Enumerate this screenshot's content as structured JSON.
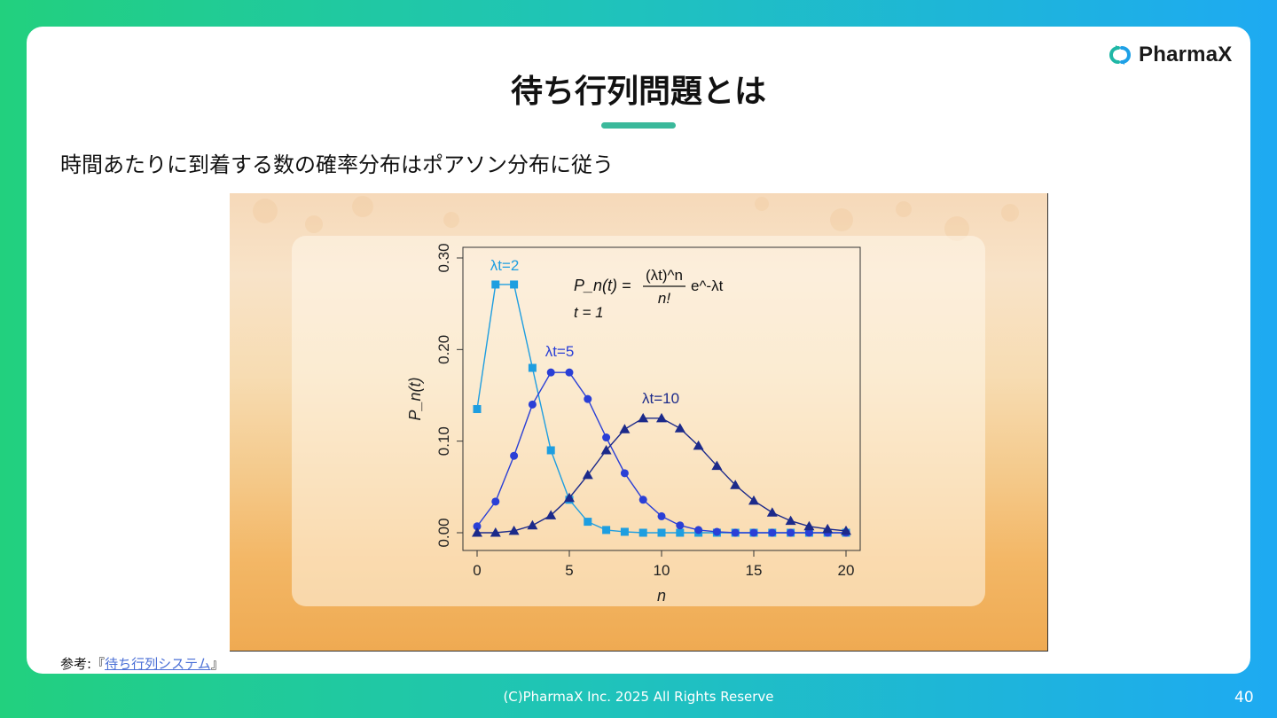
{
  "brand": {
    "name": "PharmaX"
  },
  "slide": {
    "title": "待ち行列問題とは",
    "subtitle": "時間あたりに到着する数の確率分布はポアソン分布に従う",
    "source_prefix": "参考:『",
    "source_link": "待ち行列システム",
    "source_suffix": "』",
    "footer": "(C)PharmaX Inc. 2025  All Rights Reserve",
    "page_number": "40"
  },
  "colors": {
    "accent": "#3bb99b",
    "series_2": "#1e9ee0",
    "series_5": "#2a3fd6",
    "series_10": "#1c2a8a"
  },
  "chart_data": {
    "type": "line",
    "xlabel": "n",
    "ylabel": "P_n(t)",
    "xlim": [
      0,
      20
    ],
    "ylim": [
      0,
      0.3
    ],
    "xticks": [
      "0",
      "5",
      "10",
      "15",
      "20"
    ],
    "yticks": [
      "0.00",
      "0.10",
      "0.20",
      "0.30"
    ],
    "formula": {
      "lhs": "P_n(t) =",
      "numerator": "(λt)^n",
      "denominator": "n!",
      "exp": "e^-λt",
      "t_line": "t = 1"
    },
    "series": [
      {
        "name": "λt=2",
        "marker": "square",
        "x": [
          0,
          1,
          2,
          3,
          4,
          5,
          6,
          7,
          8,
          9,
          10,
          11,
          12,
          13,
          14,
          15,
          16,
          17,
          18,
          19,
          20
        ],
        "y": [
          0.135,
          0.271,
          0.271,
          0.18,
          0.09,
          0.036,
          0.012,
          0.003,
          0.001,
          0,
          0,
          0,
          0,
          0,
          0,
          0,
          0,
          0,
          0,
          0,
          0
        ]
      },
      {
        "name": "λt=5",
        "marker": "circle",
        "x": [
          0,
          1,
          2,
          3,
          4,
          5,
          6,
          7,
          8,
          9,
          10,
          11,
          12,
          13,
          14,
          15,
          16,
          17,
          18,
          19,
          20
        ],
        "y": [
          0.007,
          0.034,
          0.084,
          0.14,
          0.175,
          0.175,
          0.146,
          0.104,
          0.065,
          0.036,
          0.018,
          0.008,
          0.003,
          0.001,
          0,
          0,
          0,
          0,
          0,
          0,
          0
        ]
      },
      {
        "name": "λt=10",
        "marker": "triangle",
        "x": [
          0,
          1,
          2,
          3,
          4,
          5,
          6,
          7,
          8,
          9,
          10,
          11,
          12,
          13,
          14,
          15,
          16,
          17,
          18,
          19,
          20
        ],
        "y": [
          0,
          0,
          0.002,
          0.008,
          0.019,
          0.038,
          0.063,
          0.09,
          0.113,
          0.125,
          0.125,
          0.114,
          0.095,
          0.073,
          0.052,
          0.035,
          0.022,
          0.013,
          0.007,
          0.004,
          0.002
        ]
      }
    ]
  }
}
